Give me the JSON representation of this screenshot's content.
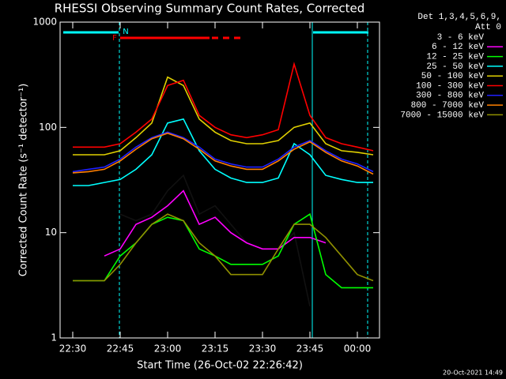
{
  "chart_data": {
    "type": "line",
    "title": "RHESSI Observing Summary Count Rates, Corrected",
    "x_label": "Start Time (26-Oct-02 22:26:42)",
    "y_label": "Corrected Count Rate (s⁻¹ detector⁻¹)",
    "legend_title": [
      "Det 1,3,4,5,6,9,",
      "Att 0"
    ],
    "annotations": [
      "F",
      "N"
    ],
    "footer": "20-Oct-2021 14:49",
    "log_y": true,
    "xlim": [
      "22:26",
      "00:07"
    ],
    "xticks": [
      "22:30",
      "22:45",
      "23:00",
      "23:15",
      "23:30",
      "23:45",
      "00:00"
    ],
    "ylim": [
      1,
      1000
    ],
    "yticks": [
      1,
      10,
      100,
      1000
    ],
    "x": [
      "22:30",
      "22:35",
      "22:40",
      "22:45",
      "22:50",
      "22:55",
      "23:00",
      "23:05",
      "23:10",
      "23:15",
      "23:20",
      "23:25",
      "23:30",
      "23:35",
      "23:40",
      "23:45",
      "23:50",
      "23:55",
      "00:00",
      "00:05"
    ],
    "series": [
      {
        "name": "3 - 6 keV",
        "color": "#000000",
        "values": [
          null,
          null,
          null,
          15,
          13,
          15,
          25,
          35,
          15,
          18,
          12,
          8,
          7,
          7,
          10,
          2,
          null,
          null,
          null,
          null
        ]
      },
      {
        "name": "6 - 12 keV",
        "color": "#ff00ff",
        "values": [
          null,
          null,
          6,
          7,
          12,
          14,
          18,
          25,
          12,
          14,
          10,
          8,
          7,
          7,
          9,
          9,
          8,
          null,
          null,
          null
        ]
      },
      {
        "name": "12 - 25 keV",
        "color": "#00ff00",
        "values": [
          3.5,
          3.5,
          3.5,
          6,
          8,
          12,
          14,
          13,
          7,
          6,
          5,
          5,
          5,
          6,
          12,
          15,
          4,
          3,
          3,
          3
        ]
      },
      {
        "name": "25 - 50 keV",
        "color": "#00ffff",
        "values": [
          28,
          28,
          30,
          32,
          40,
          55,
          110,
          120,
          60,
          40,
          33,
          30,
          30,
          33,
          70,
          55,
          35,
          32,
          30,
          30
        ]
      },
      {
        "name": "50 - 100 keV",
        "color": "#e0d000",
        "values": [
          55,
          55,
          55,
          60,
          80,
          110,
          300,
          250,
          120,
          90,
          75,
          70,
          70,
          75,
          100,
          110,
          70,
          60,
          58,
          55
        ]
      },
      {
        "name": "100 - 300 keV",
        "color": "#ff0000",
        "values": [
          65,
          65,
          65,
          70,
          90,
          120,
          250,
          280,
          130,
          100,
          85,
          80,
          85,
          95,
          400,
          130,
          80,
          70,
          65,
          60
        ]
      },
      {
        "name": "300 - 800 keV",
        "color": "#2020ff",
        "values": [
          38,
          40,
          42,
          50,
          65,
          80,
          90,
          80,
          65,
          50,
          45,
          42,
          42,
          50,
          65,
          75,
          60,
          50,
          45,
          38
        ]
      },
      {
        "name": "800 - 7000 keV",
        "color": "#ff8000",
        "values": [
          37,
          38,
          40,
          48,
          62,
          78,
          88,
          78,
          62,
          48,
          43,
          40,
          40,
          48,
          62,
          73,
          58,
          48,
          43,
          36
        ]
      },
      {
        "name": "7000 - 15000 keV",
        "color": "#909000",
        "values": [
          3.5,
          3.5,
          3.5,
          5,
          8,
          12,
          15,
          13,
          8,
          6,
          4,
          4,
          4,
          7,
          12,
          12,
          9,
          6,
          4,
          3.5
        ]
      }
    ]
  }
}
